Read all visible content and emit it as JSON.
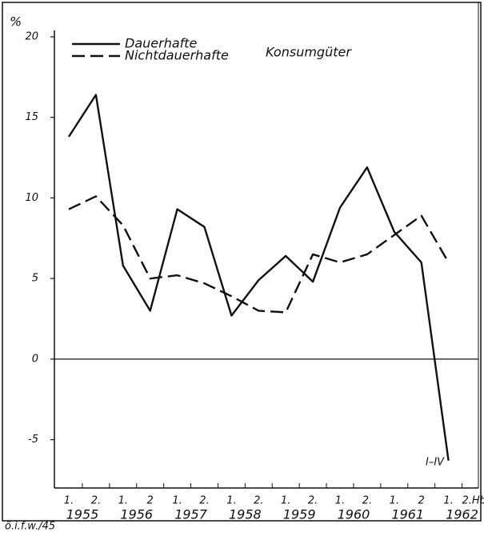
{
  "chart_data": {
    "type": "line",
    "y_unit": "%",
    "legend_title": "Konsumgüter",
    "categories": [
      "1.",
      "2.",
      "1.",
      "2",
      "1.",
      "2.",
      "1.",
      "2.",
      "1.",
      "2.",
      "1.",
      "2.",
      "1.",
      "2",
      "1.",
      "2.Hbj"
    ],
    "years": [
      "1955",
      "1956",
      "1957",
      "1958",
      "1959",
      "1960",
      "1961",
      "1962"
    ],
    "series": [
      {
        "name": "Dauerhafte",
        "color": "#111111",
        "linestyle": "solid",
        "values": [
          13.8,
          16.4,
          5.8,
          3.0,
          9.3,
          8.2,
          2.7,
          4.9,
          6.4,
          4.8,
          9.4,
          11.9,
          7.9,
          6.0,
          -6.3,
          null
        ]
      },
      {
        "name": "Nichtdauerhafte",
        "color": "#111111",
        "linestyle": "dashed",
        "values": [
          9.3,
          10.1,
          8.3,
          5.0,
          5.2,
          4.7,
          3.9,
          3.0,
          2.9,
          6.5,
          6.0,
          6.5,
          7.7,
          8.9,
          6.0,
          null
        ]
      }
    ],
    "annotation": "I–IV",
    "source": "ö.i.f.w./45",
    "ylim": [
      -8,
      20
    ],
    "yticks": [
      20,
      15,
      10,
      5,
      0,
      -5
    ]
  }
}
